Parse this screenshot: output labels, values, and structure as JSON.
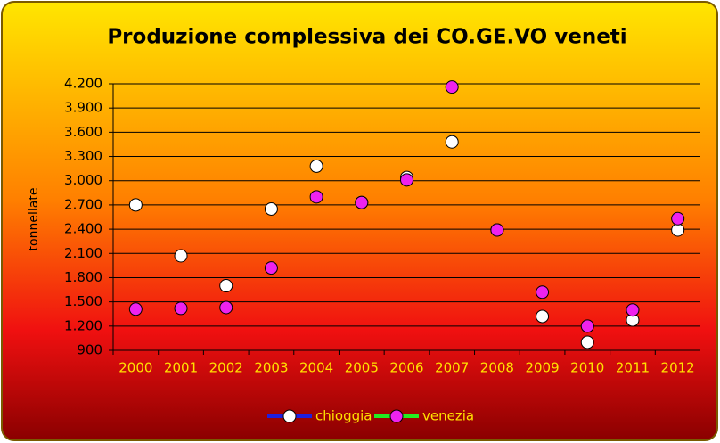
{
  "chart_data": {
    "type": "line",
    "title": "Produzione complessiva dei CO.GE.VO veneti",
    "y_label": "tonnellate",
    "categories": [
      "2000",
      "2001",
      "2002",
      "2003",
      "2004",
      "2005",
      "2006",
      "2007",
      "2008",
      "2009",
      "2010",
      "2011",
      "2012"
    ],
    "series": [
      {
        "name": "chioggia",
        "color": "#1f1fe0",
        "marker_color": "#ffffff",
        "values": [
          2700,
          2070,
          1700,
          2650,
          3180,
          2730,
          3040,
          3480,
          2390,
          1320,
          1000,
          1275,
          2390
        ]
      },
      {
        "name": "venezia",
        "color": "#22ee22",
        "marker_color": "#ee22ee",
        "values": [
          1410,
          1420,
          1430,
          1920,
          2800,
          2730,
          3010,
          4160,
          2390,
          1620,
          1200,
          1400,
          2530
        ]
      }
    ],
    "ylim": [
      900,
      4200
    ],
    "yticks": [
      900,
      {
        "value": 1200,
        "label": "1.200"
      },
      {
        "value": 1500,
        "label": "1.500"
      },
      {
        "value": 1800,
        "label": "1.800"
      },
      {
        "value": 2100,
        "label": "2.100"
      },
      {
        "value": 2400,
        "label": "2.400"
      },
      {
        "value": 2700,
        "label": "2.700"
      },
      {
        "value": 3000,
        "label": "3.000"
      },
      {
        "value": 3300,
        "label": "3.300"
      },
      {
        "value": 3600,
        "label": "3.600"
      },
      {
        "value": 3900,
        "label": "3.900"
      },
      {
        "value": 4200,
        "label": "4.200"
      }
    ],
    "grid": true,
    "legend": "bottom"
  }
}
